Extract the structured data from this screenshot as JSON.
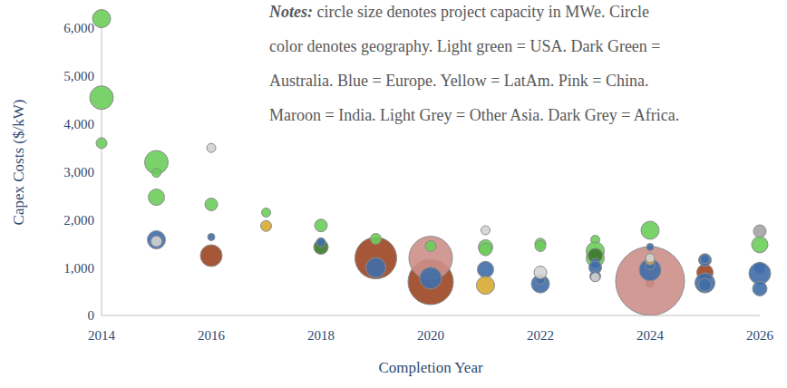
{
  "chart_data": {
    "type": "scatter",
    "x_label": "Completion Year",
    "y_label": "Capex Costs ($/kW)",
    "annotation": {
      "label": "Notes:",
      "lines": [
        "circle size denotes project capacity in MWe. Circle",
        "color denotes geography. Light green = USA. Dark Green =",
        "Australia. Blue = Europe. Yellow = LatAm. Pink = China.",
        "Maroon = India. Light Grey = Other Asia. Dark Grey = Africa."
      ]
    },
    "xlim": [
      2014,
      2026
    ],
    "xticks": [
      2014,
      2016,
      2018,
      2020,
      2022,
      2024,
      2026
    ],
    "ylim": [
      0,
      6400
    ],
    "yticks": [
      0,
      {
        "value": 1000,
        "label": "1,000"
      },
      {
        "value": 2000,
        "label": "2,000"
      },
      {
        "value": 3000,
        "label": "3,000"
      },
      {
        "value": 4000,
        "label": "4,000"
      },
      {
        "value": 5000,
        "label": "5,000"
      },
      {
        "value": 6000,
        "label": "6,000"
      }
    ],
    "grid": false,
    "series": [
      {
        "name": "India",
        "color": "#9c4521",
        "x": [
          2016,
          2019,
          2020,
          2024,
          2025
        ],
        "values": [
          1250,
          1200,
          700,
          680,
          900
        ],
        "capacity": [
          720,
          2645,
          3125,
          125,
          405
        ]
      },
      {
        "name": "China",
        "color": "#cc8f8a",
        "x": [
          2020,
          2024
        ],
        "values": [
          1200,
          720
        ],
        "capacity": [
          2880,
          7220
        ]
      },
      {
        "name": "USA",
        "color": "#6ccd5b",
        "x": [
          2014,
          2014,
          2014,
          2015,
          2015,
          2015,
          2016,
          2017,
          2018,
          2019,
          2020,
          2021,
          2021,
          2022,
          2022,
          2023,
          2023,
          2023,
          2024,
          2026
        ],
        "values": [
          6200,
          4550,
          3600,
          3200,
          2980,
          2470,
          2320,
          2150,
          1880,
          1600,
          1450,
          1430,
          1380,
          1500,
          1450,
          1580,
          1350,
          1200,
          1780,
          1480
        ],
        "capacity": [
          500,
          845,
          180,
          845,
          125,
          405,
          245,
          125,
          245,
          180,
          180,
          320,
          245,
          180,
          180,
          125,
          500,
          500,
          500,
          405
        ]
      },
      {
        "name": "Australia",
        "color": "#3b7a2b",
        "x": [
          2018,
          2023
        ],
        "values": [
          1430,
          1250
        ],
        "capacity": [
          320,
          320
        ]
      },
      {
        "name": "Europe",
        "color": "#3f6ea8",
        "x": [
          2015,
          2016,
          2018,
          2019,
          2020,
          2021,
          2022,
          2022,
          2023,
          2023,
          2023,
          2024,
          2024,
          2024,
          2025,
          2025,
          2025,
          2025,
          2026,
          2026,
          2026
        ],
        "values": [
          1580,
          1640,
          1530,
          1000,
          780,
          960,
          660,
          750,
          1100,
          1000,
          820,
          1430,
          950,
          1050,
          1160,
          1180,
          680,
          640,
          1000,
          880,
          560
        ],
        "capacity": [
          500,
          80,
          125,
          605,
          720,
          405,
          500,
          125,
          125,
          245,
          180,
          80,
          720,
          125,
          245,
          125,
          605,
          245,
          180,
          720,
          320
        ]
      },
      {
        "name": "LatAm",
        "color": "#d6aa32",
        "x": [
          2017,
          2021,
          2024
        ],
        "values": [
          1870,
          630,
          1150
        ],
        "capacity": [
          180,
          500,
          125
        ]
      },
      {
        "name": "Other Asia",
        "color": "#d3d3d3",
        "x": [
          2015,
          2016,
          2021,
          2022,
          2023,
          2024
        ],
        "values": [
          1550,
          3500,
          1780,
          900,
          800,
          1200
        ],
        "capacity": [
          180,
          125,
          125,
          245,
          125,
          125
        ]
      },
      {
        "name": "Africa",
        "color": "#a3a3a3",
        "x": [
          2026
        ],
        "values": [
          1760
        ],
        "capacity": [
          245
        ]
      }
    ]
  }
}
